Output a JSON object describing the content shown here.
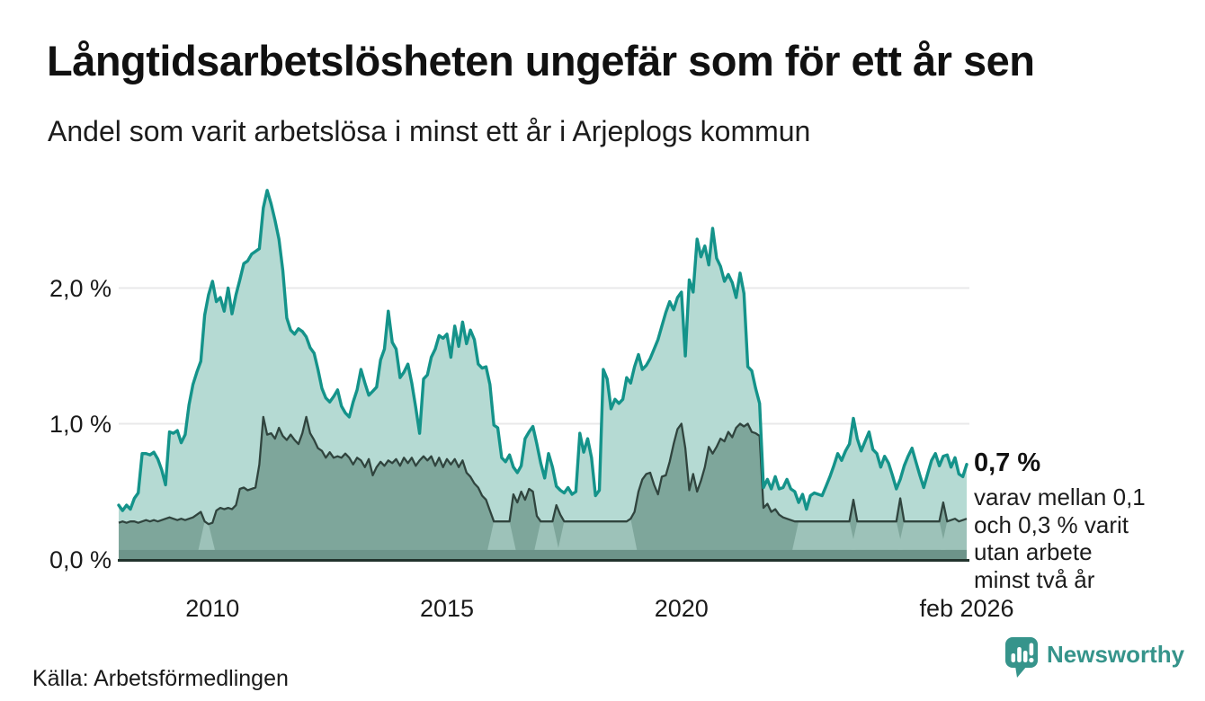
{
  "header": {
    "title": "Långtidsarbetslösheten ungefär som för ett år sen",
    "subtitle": "Andel som varit arbetslösa i minst ett år i Arjeplogs kommun"
  },
  "footer": {
    "source": "Källa: Arbetsförmedlingen",
    "brand": "Newsworthy",
    "brand_color": "#36948b",
    "logo_icon": "speech-bubble-with-bar-chart-and-exclamation"
  },
  "chart_data": {
    "type": "area",
    "unit": "percent",
    "frequency": "monthly",
    "x_start": "2008-01",
    "x_end": "2026-02",
    "ylim": [
      0,
      2.8
    ],
    "grid": "horizontal",
    "gridline_color": "#e8e8ea",
    "axis_color": "#22332d",
    "y_ticks": [
      {
        "label": "0,0 %",
        "value": 0
      },
      {
        "label": "1,0 %",
        "value": 1
      },
      {
        "label": "2,0 %",
        "value": 2
      }
    ],
    "x_ticks": [
      {
        "label": "2010",
        "month_index": 24
      },
      {
        "label": "2015",
        "month_index": 84
      },
      {
        "label": "2020",
        "month_index": 144
      },
      {
        "label": "feb 2026",
        "month_index": 217
      }
    ],
    "baseline_strip": {
      "top_value": 0.07,
      "color": "#6d948a"
    },
    "annotation": {
      "value_label": "0,7 %",
      "lines": [
        "varav mellan 0,1",
        "och 0,3 % varit",
        "utan arbete",
        "minst två år"
      ]
    },
    "series": [
      {
        "name": "Andel arbetslösa minst ett år",
        "line_color": "#14938a",
        "fill_color": "#b5dad3",
        "values": [
          0.4,
          0.36,
          0.4,
          0.37,
          0.45,
          0.49,
          0.78,
          0.78,
          0.77,
          0.79,
          0.74,
          0.66,
          0.55,
          0.94,
          0.93,
          0.95,
          0.86,
          0.92,
          1.14,
          1.29,
          1.38,
          1.46,
          1.8,
          1.95,
          2.05,
          1.9,
          1.93,
          1.83,
          2.0,
          1.81,
          1.95,
          2.06,
          2.18,
          2.2,
          2.25,
          2.27,
          2.29,
          2.59,
          2.72,
          2.62,
          2.5,
          2.36,
          2.13,
          1.78,
          1.69,
          1.66,
          1.7,
          1.68,
          1.64,
          1.56,
          1.52,
          1.4,
          1.26,
          1.19,
          1.16,
          1.2,
          1.25,
          1.13,
          1.08,
          1.05,
          1.16,
          1.25,
          1.4,
          1.3,
          1.21,
          1.24,
          1.27,
          1.47,
          1.55,
          1.83,
          1.6,
          1.55,
          1.34,
          1.38,
          1.44,
          1.3,
          1.12,
          0.93,
          1.33,
          1.36,
          1.49,
          1.55,
          1.65,
          1.63,
          1.66,
          1.49,
          1.72,
          1.57,
          1.75,
          1.59,
          1.69,
          1.62,
          1.44,
          1.41,
          1.42,
          1.29,
          0.99,
          0.97,
          0.75,
          0.72,
          0.77,
          0.68,
          0.64,
          0.69,
          0.89,
          0.94,
          0.98,
          0.85,
          0.71,
          0.6,
          0.78,
          0.68,
          0.54,
          0.51,
          0.49,
          0.53,
          0.48,
          0.5,
          0.93,
          0.79,
          0.89,
          0.75,
          0.47,
          0.51,
          1.4,
          1.33,
          1.11,
          1.18,
          1.15,
          1.18,
          1.34,
          1.3,
          1.42,
          1.51,
          1.4,
          1.43,
          1.48,
          1.55,
          1.62,
          1.72,
          1.82,
          1.9,
          1.84,
          1.93,
          1.97,
          1.5,
          2.06,
          1.97,
          2.36,
          2.23,
          2.31,
          2.17,
          2.44,
          2.22,
          2.16,
          2.05,
          2.1,
          2.04,
          1.93,
          2.11,
          1.96,
          1.42,
          1.39,
          1.26,
          1.15,
          0.53,
          0.59,
          0.52,
          0.61,
          0.52,
          0.53,
          0.59,
          0.52,
          0.5,
          0.42,
          0.48,
          0.37,
          0.47,
          0.49,
          0.48,
          0.47,
          0.54,
          0.61,
          0.69,
          0.78,
          0.73,
          0.8,
          0.85,
          1.04,
          0.89,
          0.8,
          0.87,
          0.94,
          0.81,
          0.78,
          0.68,
          0.76,
          0.71,
          0.62,
          0.52,
          0.59,
          0.69,
          0.76,
          0.82,
          0.72,
          0.62,
          0.53,
          0.63,
          0.73,
          0.78,
          0.69,
          0.76,
          0.77,
          0.68,
          0.75,
          0.63,
          0.61,
          0.7
        ]
      },
      {
        "name": "Andel arbetslösa minst två år",
        "line_color": "#30443e",
        "fill_color": "#7ea69b",
        "censored_fill_color": "#9dc2b9",
        "censored_ranges": [
          [
            22,
            23
          ],
          [
            96,
            100
          ],
          [
            108,
            111
          ],
          [
            114,
            131
          ],
          [
            174,
            187
          ],
          [
            189,
            199
          ],
          [
            201,
            210
          ],
          [
            212,
            217
          ]
        ],
        "values": [
          0.27,
          0.28,
          0.27,
          0.28,
          0.28,
          0.27,
          0.28,
          0.29,
          0.28,
          0.29,
          0.28,
          0.29,
          0.3,
          0.31,
          0.3,
          0.29,
          0.3,
          0.29,
          0.3,
          0.31,
          0.33,
          0.35,
          0.28,
          0.26,
          0.27,
          0.36,
          0.38,
          0.37,
          0.38,
          0.37,
          0.4,
          0.52,
          0.53,
          0.51,
          0.52,
          0.53,
          0.7,
          1.05,
          0.92,
          0.93,
          0.89,
          0.97,
          0.91,
          0.88,
          0.92,
          0.88,
          0.85,
          0.93,
          1.05,
          0.93,
          0.88,
          0.82,
          0.8,
          0.75,
          0.79,
          0.75,
          0.76,
          0.75,
          0.78,
          0.75,
          0.7,
          0.75,
          0.73,
          0.68,
          0.74,
          0.62,
          0.68,
          0.72,
          0.69,
          0.73,
          0.71,
          0.74,
          0.69,
          0.75,
          0.71,
          0.75,
          0.69,
          0.73,
          0.76,
          0.73,
          0.76,
          0.69,
          0.75,
          0.68,
          0.74,
          0.7,
          0.74,
          0.68,
          0.73,
          0.64,
          0.61,
          0.56,
          0.53,
          0.47,
          0.44,
          0.36,
          0.28,
          0.28,
          0.28,
          0.28,
          0.28,
          0.48,
          0.42,
          0.5,
          0.44,
          0.52,
          0.5,
          0.32,
          0.28,
          0.28,
          0.28,
          0.28,
          0.4,
          0.33,
          0.28,
          0.28,
          0.28,
          0.28,
          0.28,
          0.28,
          0.28,
          0.28,
          0.28,
          0.28,
          0.28,
          0.28,
          0.28,
          0.28,
          0.28,
          0.28,
          0.28,
          0.3,
          0.35,
          0.5,
          0.59,
          0.63,
          0.64,
          0.55,
          0.48,
          0.61,
          0.62,
          0.72,
          0.85,
          0.96,
          1.0,
          0.82,
          0.51,
          0.63,
          0.5,
          0.58,
          0.68,
          0.83,
          0.78,
          0.83,
          0.89,
          0.87,
          0.94,
          0.9,
          0.97,
          1.0,
          0.98,
          1.0,
          0.94,
          0.93,
          0.91,
          0.38,
          0.41,
          0.35,
          0.37,
          0.33,
          0.31,
          0.3,
          0.29,
          0.28,
          0.28,
          0.28,
          0.28,
          0.28,
          0.28,
          0.28,
          0.28,
          0.28,
          0.28,
          0.28,
          0.28,
          0.28,
          0.28,
          0.28,
          0.44,
          0.28,
          0.28,
          0.28,
          0.28,
          0.28,
          0.28,
          0.28,
          0.28,
          0.28,
          0.28,
          0.28,
          0.45,
          0.28,
          0.28,
          0.28,
          0.28,
          0.28,
          0.28,
          0.28,
          0.28,
          0.28,
          0.28,
          0.42,
          0.28,
          0.29,
          0.3,
          0.28,
          0.29,
          0.3
        ]
      }
    ]
  }
}
